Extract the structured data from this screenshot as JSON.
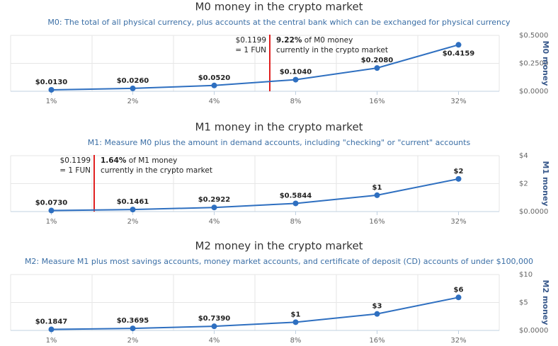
{
  "chart_data": [
    {
      "type": "line",
      "title": "M0 money in the crypto market",
      "subtitle": "M0: The total of all physical currency, plus accounts at the central bank which can be exchanged for physical currency",
      "categories": [
        "1%",
        "2%",
        "4%",
        "8%",
        "16%",
        "32%"
      ],
      "values": [
        0.013,
        0.026,
        0.052,
        0.104,
        0.208,
        0.4159
      ],
      "value_labels": [
        "$0.0130",
        "$0.0260",
        "$0.0520",
        "$0.1040",
        "$0.2080",
        "$0.4159"
      ],
      "color": "#2e6fc0",
      "ylim": [
        0,
        0.5
      ],
      "yticks": [
        {
          "value": 0,
          "label": "$0.0000"
        },
        {
          "value": 0.25,
          "label": "$0.2500"
        },
        {
          "value": 0.5,
          "label": "$0.5000"
        }
      ],
      "ylabel": "M0 money",
      "annotation": {
        "price": "$0.1199",
        "unit": "= 1 FUN",
        "share": "9.22%",
        "lines": [
          "of M0 money",
          "currently in the crypto market"
        ]
      }
    },
    {
      "type": "line",
      "title": "M1 money in the crypto market",
      "subtitle": "M1: Measure M0 plus the amount in demand accounts, including \"checking\" or \"current\" accounts",
      "categories": [
        "1%",
        "2%",
        "4%",
        "8%",
        "16%",
        "32%"
      ],
      "values": [
        0.073,
        0.1461,
        0.2922,
        0.5844,
        1.1688,
        2.3376
      ],
      "value_labels": [
        "$0.0730",
        "$0.1461",
        "$0.2922",
        "$0.5844",
        "$1",
        "$2"
      ],
      "color": "#2e6fc0",
      "ylim": [
        0,
        4
      ],
      "yticks": [
        {
          "value": 0,
          "label": "$0.0000"
        },
        {
          "value": 2,
          "label": "$2"
        },
        {
          "value": 4,
          "label": "$4"
        }
      ],
      "ylabel": "M1 money",
      "annotation": {
        "price": "$0.1199",
        "unit": "= 1 FUN",
        "share": "1.64%",
        "lines": [
          "of M1 money",
          "currently in the crypto market"
        ]
      }
    },
    {
      "type": "line",
      "title": "M2 money in the crypto market",
      "subtitle": "M2: Measure M1 plus most savings accounts, money market accounts, and certificate of deposit (CD) accounts of under $100,000",
      "categories": [
        "1%",
        "2%",
        "4%",
        "8%",
        "16%",
        "32%"
      ],
      "values": [
        0.1847,
        0.3695,
        0.739,
        1.478,
        2.956,
        5.912
      ],
      "value_labels": [
        "$0.1847",
        "$0.3695",
        "$0.7390",
        "$1",
        "$3",
        "$6"
      ],
      "color": "#2e6fc0",
      "ylim": [
        0,
        10
      ],
      "yticks": [
        {
          "value": 0,
          "label": "$0.0000"
        },
        {
          "value": 5,
          "label": "$5"
        },
        {
          "value": 10,
          "label": "$10"
        }
      ],
      "ylabel": "M2 money"
    }
  ]
}
